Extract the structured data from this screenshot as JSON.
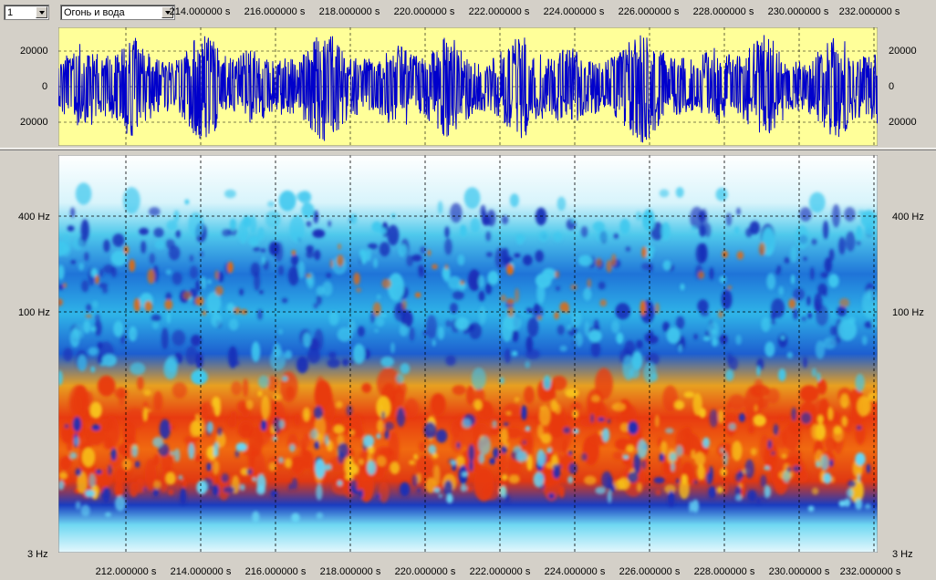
{
  "toolbar": {
    "channel_value": "1",
    "preset_value": "Огонь и вода"
  },
  "top_time_ticks": [
    "214.000000 s",
    "216.000000 s",
    "218.000000 s",
    "220.000000 s",
    "222.000000 s",
    "224.000000 s",
    "226.000000 s",
    "228.000000 s",
    "230.000000 s",
    "232.000000 s"
  ],
  "bottom_time_ticks": [
    "212.000000 s",
    "214.000000 s",
    "216.000000 s",
    "218.000000 s",
    "220.000000 s",
    "222.000000 s",
    "224.000000 s",
    "226.000000 s",
    "228.000000 s",
    "230.000000 s",
    "232.000000 s"
  ],
  "waveform_axis": {
    "left_labels": [
      "20000",
      "0",
      "20000"
    ],
    "right_labels": [
      "20000",
      "0",
      "20000"
    ]
  },
  "spectrogram_axis": {
    "left_labels": [
      "400 Hz",
      "100 Hz",
      "3 Hz"
    ],
    "right_labels": [
      "400 Hz",
      "100 Hz",
      "3 Hz"
    ]
  },
  "colors": {
    "waveform_bg": "#ffff99",
    "waveform_line": "#0000cc",
    "grid": "#000000",
    "panel": "#d4d0c8"
  }
}
